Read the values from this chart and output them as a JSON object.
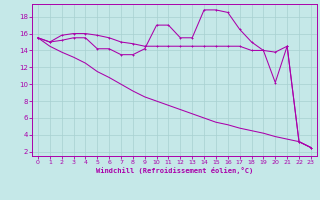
{
  "xlabel": "Windchill (Refroidissement éolien,°C)",
  "ylabel": "",
  "bg_color": "#c5e8e8",
  "grid_color": "#a8d0d0",
  "line_color": "#aa00aa",
  "ylim": [
    1.5,
    19.5
  ],
  "xlim": [
    -0.5,
    23.5
  ],
  "yticks": [
    2,
    4,
    6,
    8,
    10,
    12,
    14,
    16,
    18
  ],
  "xticks": [
    0,
    1,
    2,
    3,
    4,
    5,
    6,
    7,
    8,
    9,
    10,
    11,
    12,
    13,
    14,
    15,
    16,
    17,
    18,
    19,
    20,
    21,
    22,
    23
  ],
  "series1_x": [
    0,
    1,
    2,
    3,
    4,
    5,
    6,
    7,
    8,
    9,
    10,
    11,
    12,
    13,
    14,
    15,
    16,
    17,
    18,
    19,
    20,
    21,
    22,
    23
  ],
  "series1_y": [
    15.5,
    15.0,
    15.8,
    16.0,
    16.0,
    15.8,
    15.5,
    15.0,
    14.8,
    14.5,
    14.5,
    14.5,
    14.5,
    14.5,
    14.5,
    14.5,
    14.5,
    14.5,
    14.0,
    14.0,
    13.8,
    14.5,
    3.2,
    2.5
  ],
  "series2_x": [
    0,
    1,
    2,
    3,
    4,
    5,
    6,
    7,
    8,
    9,
    10,
    11,
    12,
    13,
    14,
    15,
    16,
    17,
    18,
    19,
    20,
    21,
    22,
    23
  ],
  "series2_y": [
    15.5,
    15.0,
    15.2,
    15.5,
    15.5,
    14.2,
    14.2,
    13.5,
    13.5,
    14.2,
    17.0,
    17.0,
    15.5,
    15.5,
    18.8,
    18.8,
    18.5,
    16.5,
    15.0,
    14.0,
    10.2,
    14.5,
    3.2,
    2.5
  ],
  "series3_x": [
    0,
    1,
    2,
    3,
    4,
    5,
    6,
    7,
    8,
    9,
    10,
    11,
    12,
    13,
    14,
    15,
    16,
    17,
    18,
    19,
    20,
    21,
    22,
    23
  ],
  "series3_y": [
    15.5,
    14.5,
    13.8,
    13.2,
    12.5,
    11.5,
    10.8,
    10.0,
    9.2,
    8.5,
    8.0,
    7.5,
    7.0,
    6.5,
    6.0,
    5.5,
    5.2,
    4.8,
    4.5,
    4.2,
    3.8,
    3.5,
    3.2,
    2.5
  ]
}
